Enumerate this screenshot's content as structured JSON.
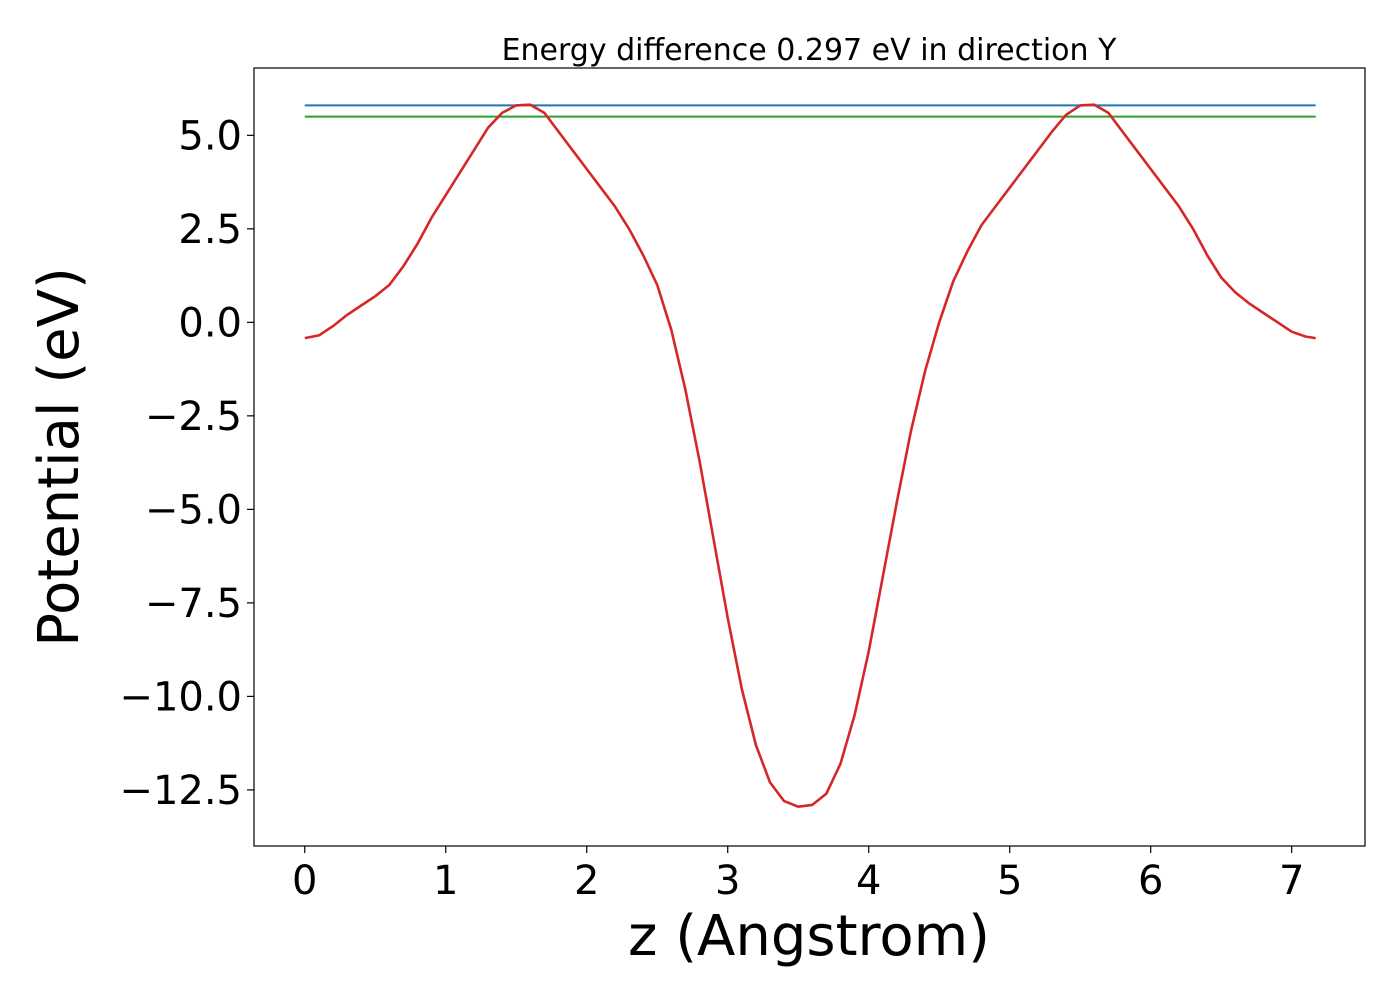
{
  "chart_data": {
    "type": "line",
    "title": "Energy difference 0.297 eV in direction Y",
    "xlabel": "z (Angstrom)",
    "ylabel": "Potential (eV)",
    "xlim": [
      -0.36,
      7.52
    ],
    "ylim": [
      -14.0,
      6.8
    ],
    "x_ticks": [
      0,
      1,
      2,
      3,
      4,
      5,
      6,
      7
    ],
    "x_tick_labels": [
      "0",
      "1",
      "2",
      "3",
      "4",
      "5",
      "6",
      "7"
    ],
    "y_ticks": [
      5.0,
      2.5,
      0.0,
      -2.5,
      -5.0,
      -7.5,
      -10.0,
      -12.5
    ],
    "y_tick_labels": [
      "5.0",
      "2.5",
      "0.0",
      "−2.5",
      "−5.0",
      "−7.5",
      "−10.0",
      "−12.5"
    ],
    "grid": false,
    "series": [
      {
        "color": "#1f77b4",
        "x": [
          0,
          7.17
        ],
        "y": [
          5.8,
          5.8
        ]
      },
      {
        "color": "#2ca02c",
        "x": [
          0,
          7.17
        ],
        "y": [
          5.5,
          5.5
        ]
      },
      {
        "color": "#d62728",
        "x": [
          0.0,
          0.1,
          0.2,
          0.3,
          0.4,
          0.5,
          0.6,
          0.7,
          0.8,
          0.9,
          1.0,
          1.1,
          1.2,
          1.3,
          1.4,
          1.5,
          1.6,
          1.7,
          1.8,
          1.9,
          2.0,
          2.1,
          2.2,
          2.3,
          2.4,
          2.5,
          2.6,
          2.7,
          2.8,
          2.9,
          3.0,
          3.1,
          3.2,
          3.3,
          3.4,
          3.5,
          3.6,
          3.7,
          3.8,
          3.9,
          4.0,
          4.1,
          4.2,
          4.3,
          4.4,
          4.5,
          4.6,
          4.7,
          4.8,
          4.9,
          5.0,
          5.1,
          5.2,
          5.3,
          5.4,
          5.5,
          5.6,
          5.7,
          5.8,
          5.9,
          6.0,
          6.1,
          6.2,
          6.3,
          6.4,
          6.5,
          6.6,
          6.7,
          6.8,
          6.9,
          7.0,
          7.1,
          7.17
        ],
        "y": [
          -0.42,
          -0.35,
          -0.1,
          0.2,
          0.45,
          0.7,
          1.0,
          1.5,
          2.1,
          2.8,
          3.4,
          4.0,
          4.6,
          5.2,
          5.6,
          5.8,
          5.82,
          5.6,
          5.1,
          4.6,
          4.1,
          3.6,
          3.1,
          2.5,
          1.8,
          1.0,
          -0.2,
          -1.8,
          -3.7,
          -5.8,
          -7.9,
          -9.8,
          -11.3,
          -12.3,
          -12.8,
          -12.95,
          -12.9,
          -12.6,
          -11.8,
          -10.5,
          -8.8,
          -6.8,
          -4.8,
          -2.9,
          -1.3,
          0.0,
          1.1,
          1.9,
          2.6,
          3.1,
          3.6,
          4.1,
          4.6,
          5.1,
          5.55,
          5.8,
          5.82,
          5.6,
          5.1,
          4.6,
          4.1,
          3.6,
          3.1,
          2.5,
          1.8,
          1.2,
          0.8,
          0.5,
          0.25,
          0.0,
          -0.25,
          -0.38,
          -0.42
        ]
      }
    ]
  }
}
